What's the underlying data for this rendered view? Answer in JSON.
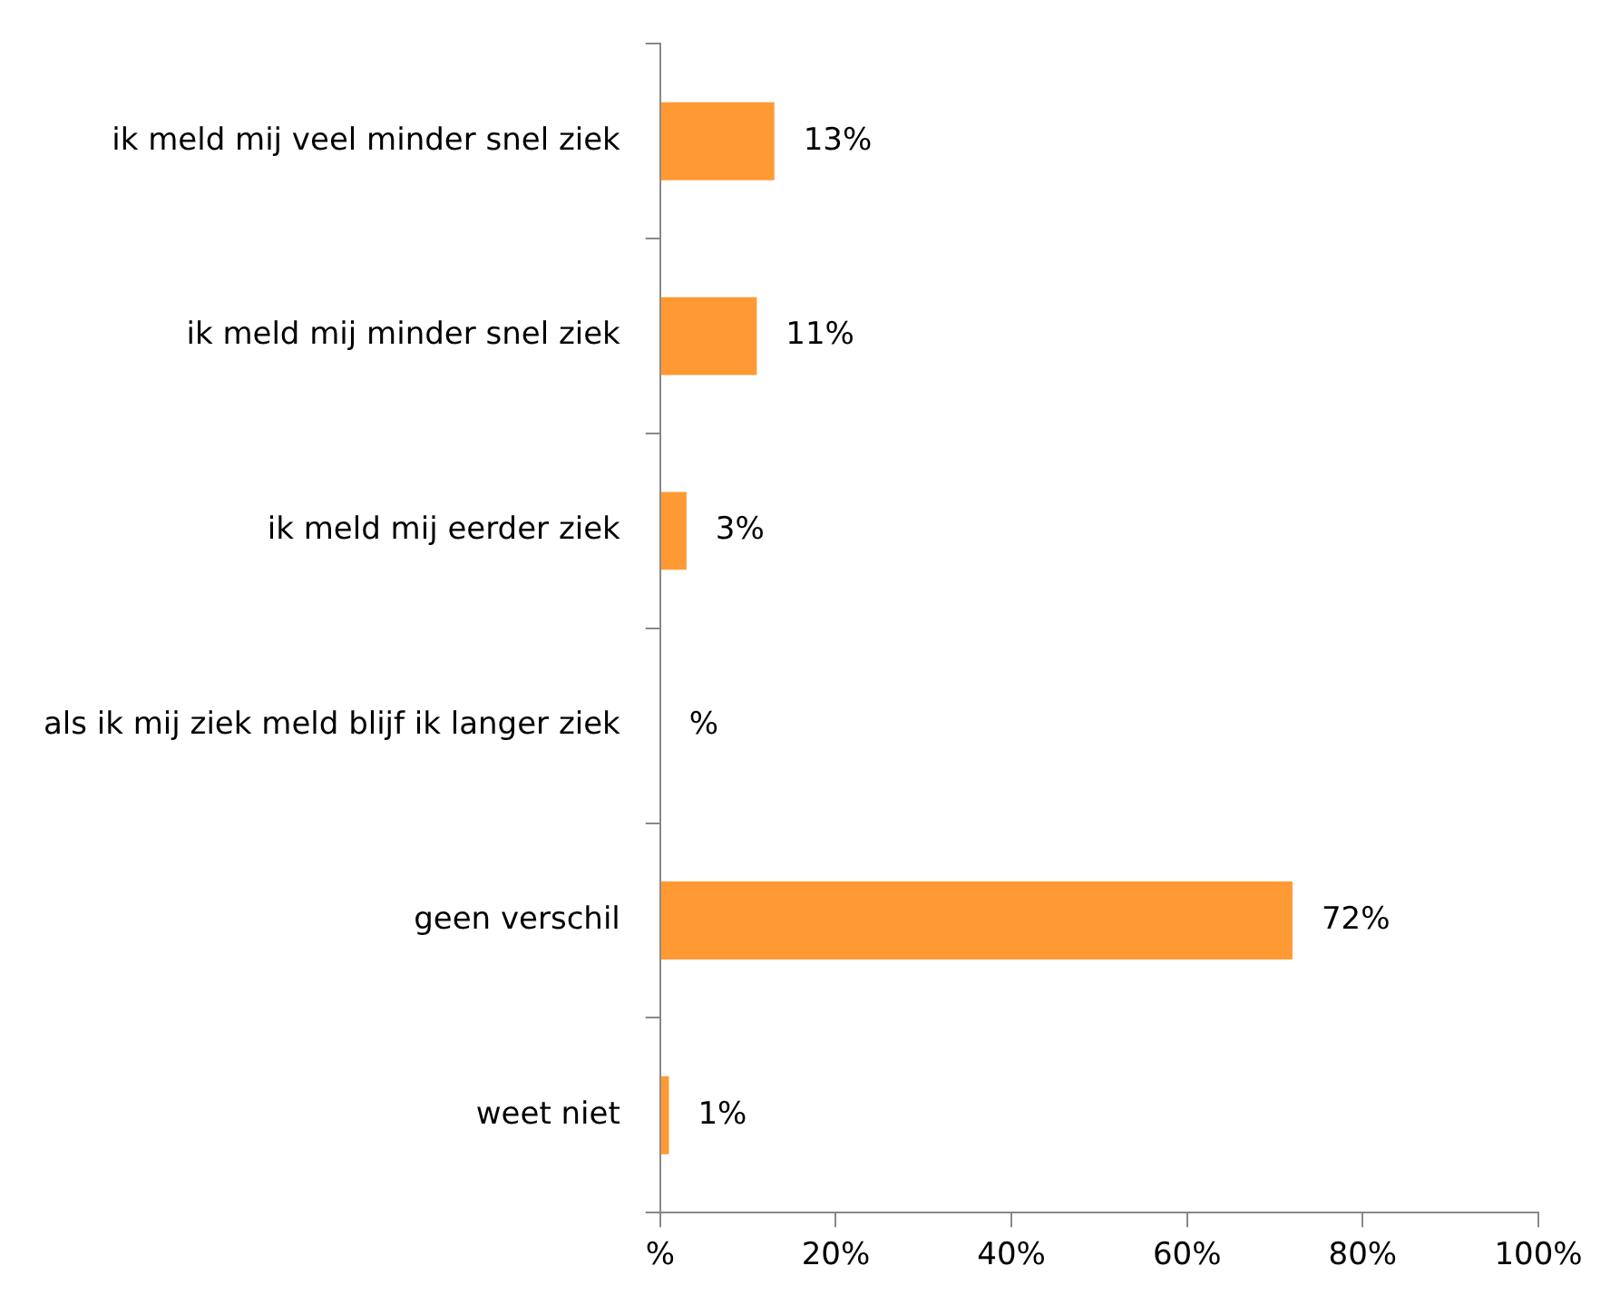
{
  "chart_data": {
    "type": "bar",
    "orientation": "horizontal",
    "categories": [
      "ik meld mij veel minder snel ziek",
      "ik meld mij minder snel ziek",
      "ik meld mij eerder ziek",
      "als ik mij ziek meld blijf ik langer ziek",
      "geen verschil",
      "weet niet"
    ],
    "values": [
      13,
      11,
      3,
      0,
      72,
      1
    ],
    "value_labels": [
      "13%",
      "11%",
      "3%",
      "%",
      "72%",
      "1%"
    ],
    "color": "#ff9933",
    "xlim": [
      0,
      100
    ],
    "xticks": [
      {
        "value": 0,
        "label": "%"
      },
      {
        "value": 20,
        "label": "20%"
      },
      {
        "value": 40,
        "label": "40%"
      },
      {
        "value": 60,
        "label": "60%"
      },
      {
        "value": 80,
        "label": "80%"
      },
      {
        "value": 100,
        "label": "100%"
      }
    ],
    "grid": false,
    "legend": false
  }
}
